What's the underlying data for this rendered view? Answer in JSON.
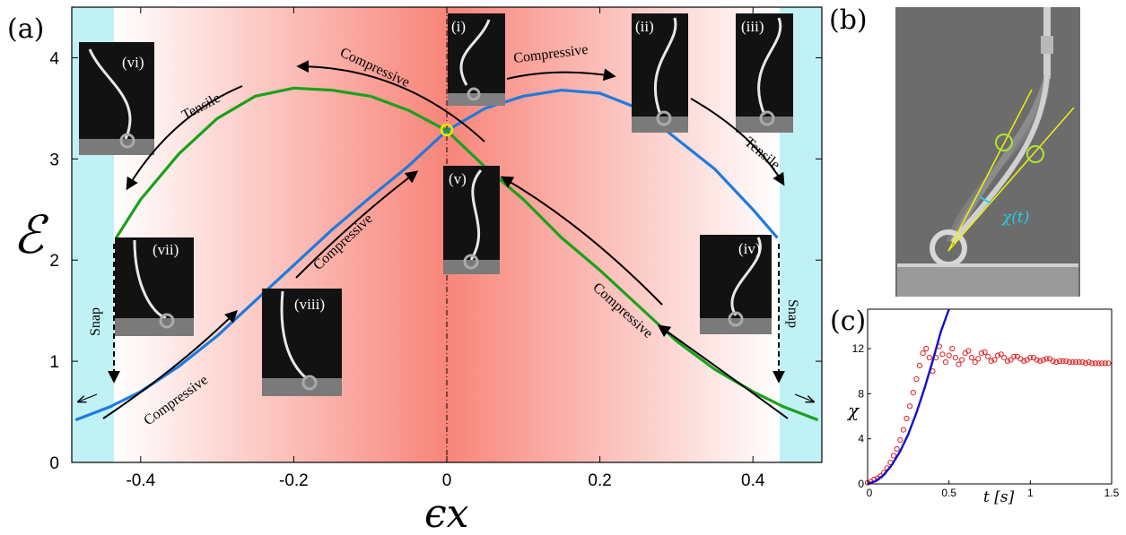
{
  "panels": {
    "a": "(a)",
    "b": "(b)",
    "c": "(c)"
  },
  "chart_data": [
    {
      "type": "line",
      "panel": "(a)",
      "xlabel": "ϵx",
      "ylabel": "ℰ",
      "xlim": [
        -0.49,
        0.49
      ],
      "ylim": [
        0,
        4.5
      ],
      "xticks": [
        "-0.4",
        "-0.2",
        "0",
        "0.2",
        "0.4"
      ],
      "xtick_values": [
        -0.4,
        -0.2,
        0,
        0.2,
        0.4
      ],
      "yticks": [
        "0",
        "1",
        "2",
        "3",
        "4"
      ],
      "ytick_values": [
        0,
        1,
        2,
        3,
        4
      ],
      "colors": {
        "blue": "#1e7bdc",
        "green": "#1aa11a",
        "snap_region": "#bff1f5",
        "center": "#f8857a"
      },
      "series": [
        {
          "color": "#1e7bdc",
          "x": [
            -0.485,
            -0.44,
            -0.4,
            -0.35,
            -0.3,
            -0.25,
            -0.2,
            -0.15,
            -0.1,
            -0.05,
            0.0,
            0.05,
            0.1,
            0.15,
            0.2,
            0.25,
            0.3,
            0.35,
            0.4,
            0.432
          ],
          "y": [
            0.42,
            0.55,
            0.7,
            0.95,
            1.25,
            1.6,
            1.95,
            2.3,
            2.62,
            2.93,
            3.28,
            3.5,
            3.62,
            3.68,
            3.65,
            3.5,
            3.2,
            2.9,
            2.5,
            2.22
          ]
        },
        {
          "color": "#1aa11a",
          "x": [
            -0.432,
            -0.4,
            -0.35,
            -0.3,
            -0.25,
            -0.2,
            -0.15,
            -0.1,
            -0.05,
            0.0,
            0.05,
            0.1,
            0.15,
            0.2,
            0.25,
            0.3,
            0.35,
            0.4,
            0.44,
            0.485
          ],
          "y": [
            2.22,
            2.6,
            3.05,
            3.4,
            3.62,
            3.7,
            3.68,
            3.62,
            3.48,
            3.28,
            2.92,
            2.6,
            2.22,
            1.9,
            1.55,
            1.2,
            0.92,
            0.7,
            0.55,
            0.42
          ]
        }
      ],
      "annotations": {
        "compressive": "Compressive",
        "tensile": "Tensile",
        "snap": "Snap",
        "insets": [
          "(i)",
          "(ii)",
          "(iii)",
          "(iv)",
          "(v)",
          "(vi)",
          "(vii)",
          "(viii)"
        ]
      }
    },
    {
      "type": "scatter",
      "panel": "(c)",
      "xlabel": "t [s]",
      "ylabel": "χ",
      "xlim": [
        0,
        1.5
      ],
      "ylim": [
        0,
        15.5
      ],
      "xticks": [
        "0",
        "0.5",
        "1",
        "1.5"
      ],
      "xtick_values": [
        0,
        0.5,
        1,
        1.5
      ],
      "yticks": [
        "0",
        "4",
        "8",
        "12"
      ],
      "ytick_values": [
        0,
        4,
        8,
        12
      ],
      "colors": {
        "markers": "#e02020",
        "fit": "#1010c8"
      },
      "series": [
        {
          "color": "#e02020",
          "x": [
            0.0,
            0.02,
            0.04,
            0.06,
            0.08,
            0.1,
            0.12,
            0.14,
            0.16,
            0.18,
            0.2,
            0.22,
            0.24,
            0.26,
            0.28,
            0.3,
            0.32,
            0.34,
            0.36,
            0.38,
            0.4,
            0.42,
            0.44,
            0.46,
            0.48,
            0.5,
            0.52,
            0.54,
            0.56,
            0.58,
            0.6,
            0.62,
            0.64,
            0.66,
            0.68,
            0.7,
            0.72,
            0.74,
            0.76,
            0.78,
            0.8,
            0.82,
            0.84,
            0.86,
            0.88,
            0.9,
            0.92,
            0.94,
            0.96,
            0.98,
            1.0,
            1.02,
            1.04,
            1.06,
            1.08,
            1.1,
            1.12,
            1.14,
            1.16,
            1.18,
            1.2,
            1.22,
            1.24,
            1.26,
            1.28,
            1.3,
            1.32,
            1.34,
            1.36,
            1.38,
            1.4,
            1.42,
            1.44,
            1.46,
            1.48
          ],
          "y": [
            0.1,
            0.2,
            0.4,
            0.5,
            0.7,
            1.0,
            1.4,
            1.9,
            2.5,
            3.1,
            3.9,
            4.8,
            5.8,
            6.9,
            8.1,
            9.3,
            10.5,
            11.6,
            12.0,
            11.2,
            10.0,
            11.2,
            12.2,
            11.5,
            10.8,
            11.4,
            12.0,
            11.2,
            10.6,
            11.0,
            11.6,
            11.8,
            11.2,
            10.8,
            11.1,
            11.6,
            11.7,
            11.3,
            10.9,
            11.0,
            11.4,
            11.5,
            11.2,
            10.9,
            11.0,
            11.3,
            11.3,
            11.1,
            10.9,
            11.0,
            11.2,
            11.2,
            11.0,
            10.9,
            11.0,
            11.1,
            11.1,
            10.9,
            10.8,
            10.9,
            10.9,
            10.9,
            10.8,
            10.8,
            10.8,
            10.8,
            10.8,
            10.7,
            10.8,
            10.7,
            10.7,
            10.7,
            10.7,
            10.7,
            10.7
          ]
        },
        {
          "color": "#1010c8",
          "x": [
            0.0,
            0.05,
            0.1,
            0.15,
            0.2,
            0.25,
            0.3,
            0.35,
            0.4,
            0.45,
            0.5
          ],
          "y": [
            0.0,
            0.25,
            0.8,
            1.7,
            2.9,
            4.4,
            6.3,
            8.5,
            10.9,
            13.5,
            15.5
          ]
        }
      ]
    }
  ],
  "photo_b": {
    "angle_label": "χ(t)",
    "colors": {
      "lines": "#f2f20a",
      "angle": "#22d0e8"
    }
  }
}
